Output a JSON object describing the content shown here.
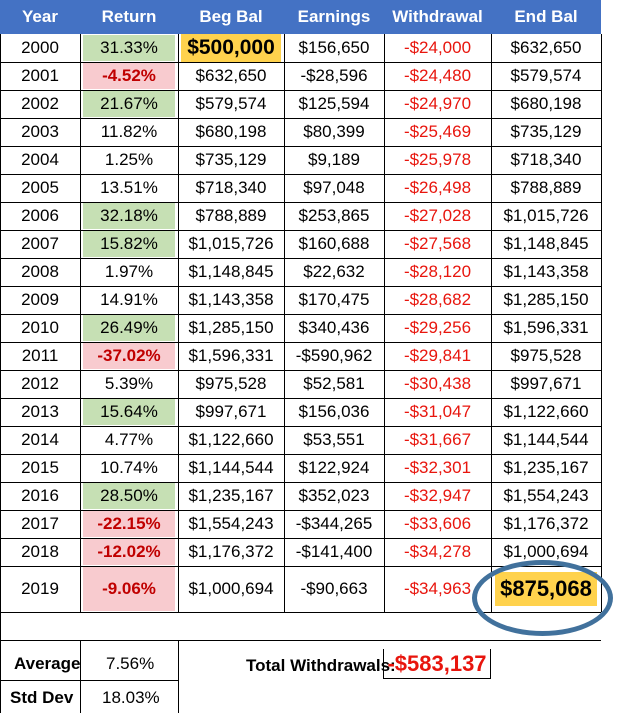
{
  "headers": {
    "year": "Year",
    "return": "Return",
    "beg": "Beg Bal",
    "earnings": "Earnings",
    "withdrawal": "Withdrawal",
    "end": "End Bal"
  },
  "rows": [
    {
      "year": "2000",
      "ret": "31.33%",
      "beg": "$500,000",
      "earn": "$156,650",
      "wd": "-$24,000",
      "end": "$632,650",
      "retStyle": "green",
      "begStyle": "gold"
    },
    {
      "year": "2001",
      "ret": "-4.52%",
      "beg": "$632,650",
      "earn": "-$28,596",
      "wd": "-$24,480",
      "end": "$579,574",
      "retStyle": "red"
    },
    {
      "year": "2002",
      "ret": "21.67%",
      "beg": "$579,574",
      "earn": "$125,594",
      "wd": "-$24,970",
      "end": "$680,198",
      "retStyle": "green"
    },
    {
      "year": "2003",
      "ret": "11.82%",
      "beg": "$680,198",
      "earn": "$80,399",
      "wd": "-$25,469",
      "end": "$735,129"
    },
    {
      "year": "2004",
      "ret": "1.25%",
      "beg": "$735,129",
      "earn": "$9,189",
      "wd": "-$25,978",
      "end": "$718,340"
    },
    {
      "year": "2005",
      "ret": "13.51%",
      "beg": "$718,340",
      "earn": "$97,048",
      "wd": "-$26,498",
      "end": "$788,889"
    },
    {
      "year": "2006",
      "ret": "32.18%",
      "beg": "$788,889",
      "earn": "$253,865",
      "wd": "-$27,028",
      "end": "$1,015,726",
      "retStyle": "green"
    },
    {
      "year": "2007",
      "ret": "15.82%",
      "beg": "$1,015,726",
      "earn": "$160,688",
      "wd": "-$27,568",
      "end": "$1,148,845",
      "retStyle": "green"
    },
    {
      "year": "2008",
      "ret": "1.97%",
      "beg": "$1,148,845",
      "earn": "$22,632",
      "wd": "-$28,120",
      "end": "$1,143,358"
    },
    {
      "year": "2009",
      "ret": "14.91%",
      "beg": "$1,143,358",
      "earn": "$170,475",
      "wd": "-$28,682",
      "end": "$1,285,150"
    },
    {
      "year": "2010",
      "ret": "26.49%",
      "beg": "$1,285,150",
      "earn": "$340,436",
      "wd": "-$29,256",
      "end": "$1,596,331",
      "retStyle": "green"
    },
    {
      "year": "2011",
      "ret": "-37.02%",
      "beg": "$1,596,331",
      "earn": "-$590,962",
      "wd": "-$29,841",
      "end": "$975,528",
      "retStyle": "red"
    },
    {
      "year": "2012",
      "ret": "5.39%",
      "beg": "$975,528",
      "earn": "$52,581",
      "wd": "-$30,438",
      "end": "$997,671"
    },
    {
      "year": "2013",
      "ret": "15.64%",
      "beg": "$997,671",
      "earn": "$156,036",
      "wd": "-$31,047",
      "end": "$1,122,660",
      "retStyle": "green"
    },
    {
      "year": "2014",
      "ret": "4.77%",
      "beg": "$1,122,660",
      "earn": "$53,551",
      "wd": "-$31,667",
      "end": "$1,144,544"
    },
    {
      "year": "2015",
      "ret": "10.74%",
      "beg": "$1,144,544",
      "earn": "$122,924",
      "wd": "-$32,301",
      "end": "$1,235,167"
    },
    {
      "year": "2016",
      "ret": "28.50%",
      "beg": "$1,235,167",
      "earn": "$352,023",
      "wd": "-$32,947",
      "end": "$1,554,243",
      "retStyle": "green"
    },
    {
      "year": "2017",
      "ret": "-22.15%",
      "beg": "$1,554,243",
      "earn": "-$344,265",
      "wd": "-$33,606",
      "end": "$1,176,372",
      "retStyle": "red"
    },
    {
      "year": "2018",
      "ret": "-12.02%",
      "beg": "$1,176,372",
      "earn": "-$141,400",
      "wd": "-$34,278",
      "end": "$1,000,694",
      "retStyle": "red"
    },
    {
      "year": "2019",
      "ret": "-9.06%",
      "beg": "$1,000,694",
      "earn": "-$90,663",
      "wd": "-$34,963",
      "end": "$875,068",
      "retStyle": "red",
      "endStyle": "gold"
    }
  ],
  "summary": {
    "average_label": "Average",
    "average_value": "7.56%",
    "stddev_label": "Std Dev",
    "stddev_value": "18.03%",
    "total_withdrawals_label": "Total Withdrawals:",
    "total_withdrawals_value": "-$583,137"
  },
  "colors": {
    "header": "#4472c4",
    "green": "#c6e0b4",
    "red_fill": "#f8cbcf",
    "gold": "#ffd24d",
    "negative_text": "#e8150d",
    "ellipse": "#41719c"
  }
}
